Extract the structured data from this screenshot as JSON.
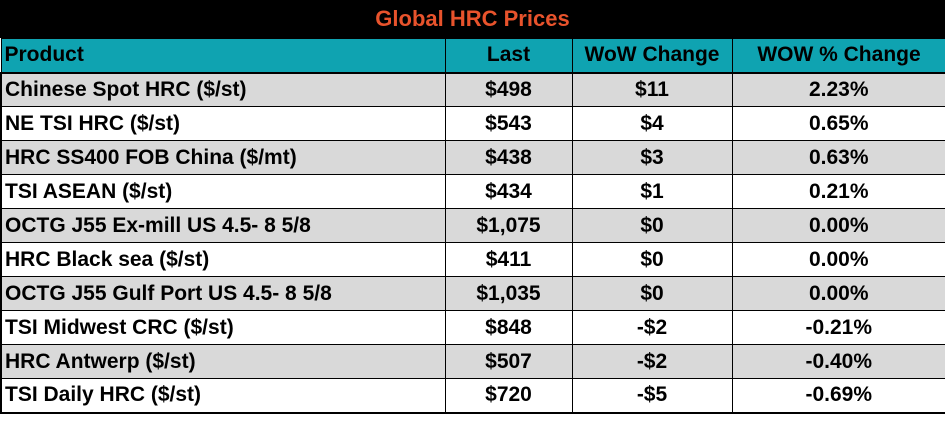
{
  "title": "Global HRC Prices",
  "colors": {
    "title_background": "#000000",
    "title_text": "#e8532c",
    "header_background": "#0fa3b1",
    "stripe_background": "#d9d9d9",
    "row_background": "#ffffff"
  },
  "chart_data": {
    "type": "table",
    "title": "Global HRC Prices",
    "columns": [
      "Product",
      "Last",
      "WoW Change",
      "WOW % Change"
    ],
    "rows": [
      [
        "Chinese Spot HRC ($/st)",
        "$498",
        "$11",
        "2.23%"
      ],
      [
        "NE TSI HRC ($/st)",
        "$543",
        "$4",
        "0.65%"
      ],
      [
        "HRC SS400 FOB China ($/mt)",
        "$438",
        "$3",
        "0.63%"
      ],
      [
        "TSI ASEAN ($/st)",
        "$434",
        "$1",
        "0.21%"
      ],
      [
        "OCTG J55 Ex-mill US 4.5- 8 5/8",
        "$1,075",
        "$0",
        "0.00%"
      ],
      [
        "HRC Black sea ($/st)",
        "$411",
        "$0",
        "0.00%"
      ],
      [
        "OCTG J55 Gulf Port US 4.5- 8 5/8",
        "$1,035",
        "$0",
        "0.00%"
      ],
      [
        "TSI Midwest CRC ($/st)",
        "$848",
        "-$2",
        "-0.21%"
      ],
      [
        "HRC Antwerp ($/st)",
        "$507",
        "-$2",
        "-0.40%"
      ],
      [
        "TSI Daily HRC ($/st)",
        "$720",
        "-$5",
        "-0.69%"
      ]
    ]
  }
}
